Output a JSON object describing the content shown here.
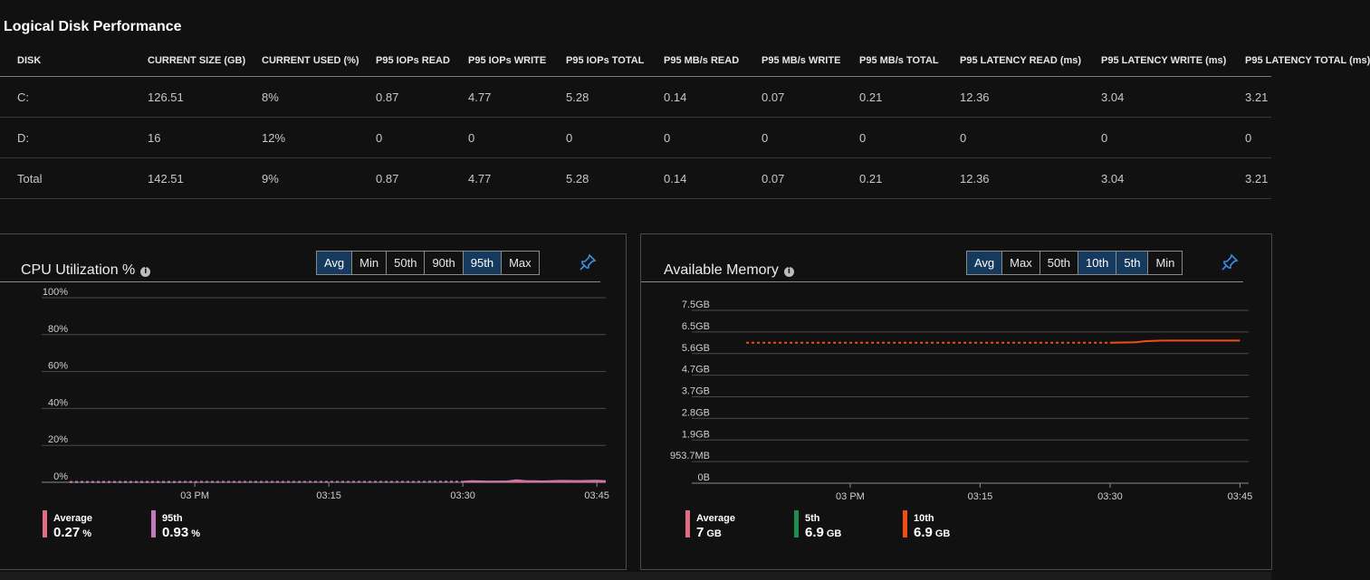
{
  "disk_section": {
    "title": "Logical Disk Performance",
    "columns": [
      "DISK",
      "CURRENT SIZE (GB)",
      "CURRENT USED (%)",
      "P95 IOPs READ",
      "P95 IOPs WRITE",
      "P95 IOPs TOTAL",
      "P95 MB/s READ",
      "P95 MB/s WRITE",
      "P95 MB/s TOTAL",
      "P95 LATENCY READ (ms)",
      "P95 LATENCY WRITE (ms)",
      "P95 LATENCY TOTAL (ms)"
    ],
    "rows": [
      [
        "C:",
        "126.51",
        "8%",
        "0.87",
        "4.77",
        "5.28",
        "0.14",
        "0.07",
        "0.21",
        "12.36",
        "3.04",
        "3.21"
      ],
      [
        "D:",
        "16",
        "12%",
        "0",
        "0",
        "0",
        "0",
        "0",
        "0",
        "0",
        "0",
        "0"
      ],
      [
        "Total",
        "142.51",
        "9%",
        "0.87",
        "4.77",
        "5.28",
        "0.14",
        "0.07",
        "0.21",
        "12.36",
        "3.04",
        "3.21"
      ]
    ]
  },
  "cpu_panel": {
    "title": "CPU Utilization %",
    "info_icon": "info-icon",
    "pin_icon": "pin-icon",
    "aggregations": [
      {
        "label": "Avg",
        "selected": true
      },
      {
        "label": "Min",
        "selected": false
      },
      {
        "label": "50th",
        "selected": false
      },
      {
        "label": "90th",
        "selected": false
      },
      {
        "label": "95th",
        "selected": true
      },
      {
        "label": "Max",
        "selected": false
      }
    ],
    "legend": [
      {
        "name": "Average",
        "value": "0.27",
        "unit": "%",
        "color": "#e06c82"
      },
      {
        "name": "95th",
        "value": "0.93",
        "unit": "%",
        "color": "#c27bb8"
      }
    ]
  },
  "memory_panel": {
    "title": "Available Memory",
    "info_icon": "info-icon",
    "pin_icon": "pin-icon",
    "aggregations": [
      {
        "label": "Avg",
        "selected": true
      },
      {
        "label": "Max",
        "selected": false
      },
      {
        "label": "50th",
        "selected": false
      },
      {
        "label": "10th",
        "selected": true
      },
      {
        "label": "5th",
        "selected": true
      },
      {
        "label": "Min",
        "selected": false
      }
    ],
    "legend": [
      {
        "name": "Average",
        "value": "7",
        "unit": "GB",
        "color": "#e06c82"
      },
      {
        "name": "5th",
        "value": "6.9",
        "unit": "GB",
        "color": "#1e8e4e"
      },
      {
        "name": "10th",
        "value": "6.9",
        "unit": "GB",
        "color": "#f04e14"
      }
    ]
  },
  "chart_data": [
    {
      "type": "line",
      "y_ticks": [
        "100%",
        "80%",
        "60%",
        "40%",
        "20%",
        "0%"
      ],
      "y_values": [
        100,
        80,
        60,
        40,
        20,
        0
      ],
      "ylim": [
        0,
        100
      ],
      "x_ticks": [
        "03 PM",
        "03:15",
        "03:30",
        "03:45"
      ],
      "x_tick_minutes": [
        0,
        15,
        30,
        45
      ],
      "xlim_minutes": [
        -14,
        46
      ],
      "gap_until_minutes": 30,
      "series": [
        {
          "name": "Average",
          "color": "#e06c82",
          "minutes": [
            -14,
            30,
            46
          ],
          "values": [
            0.2,
            0.2,
            0.2
          ]
        },
        {
          "name": "95th",
          "color": "#c27bb8",
          "minutes": [
            -14,
            30,
            31,
            33,
            35,
            36,
            37,
            39,
            41,
            43,
            45,
            46
          ],
          "values": [
            0.1,
            0.3,
            0.6,
            0.4,
            0.5,
            1.1,
            0.7,
            0.5,
            0.8,
            0.7,
            0.9,
            0.6
          ]
        }
      ]
    },
    {
      "type": "line",
      "y_ticks": [
        "7.5GB",
        "6.5GB",
        "5.6GB",
        "4.7GB",
        "3.7GB",
        "2.8GB",
        "1.9GB",
        "953.7MB",
        "0B"
      ],
      "ylim": [
        0,
        8
      ],
      "x_ticks": [
        "03 PM",
        "03:15",
        "03:30",
        "03:45"
      ],
      "x_tick_minutes": [
        0,
        15,
        30,
        45
      ],
      "xlim_minutes": [
        -14,
        46
      ],
      "gap_until_minutes": 30,
      "series": [
        {
          "name": "10th",
          "color": "#f04e14",
          "minutes": [
            -12,
            30,
            33,
            34,
            36,
            40,
            45
          ],
          "values": [
            6.5,
            6.5,
            6.52,
            6.57,
            6.6,
            6.6,
            6.6
          ]
        }
      ]
    }
  ]
}
